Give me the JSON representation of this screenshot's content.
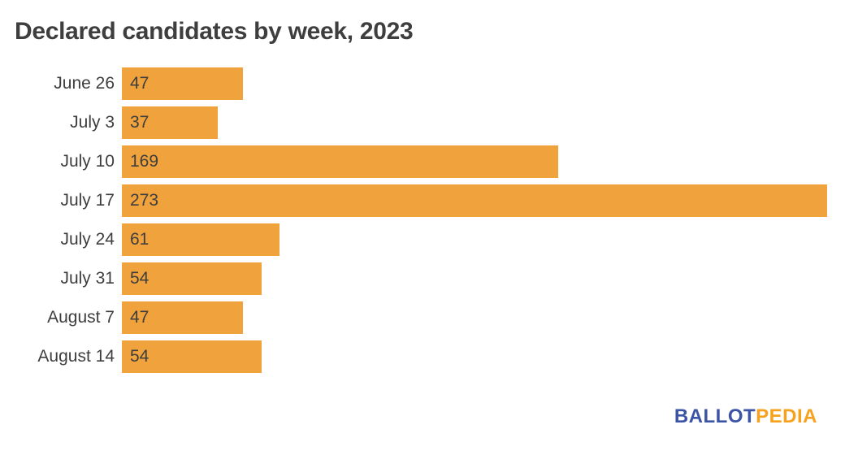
{
  "title": "Declared candidates by week, 2023",
  "chart_data": {
    "type": "bar",
    "orientation": "horizontal",
    "title": "Declared candidates by week, 2023",
    "categories": [
      "June 26",
      "July 3",
      "July 10",
      "July 17",
      "July 24",
      "July 31",
      "August 7",
      "August 14"
    ],
    "values": [
      47,
      37,
      169,
      273,
      61,
      54,
      47,
      54
    ],
    "xlabel": "",
    "ylabel": "",
    "xlim": [
      0,
      273
    ],
    "grid": false,
    "legend": "none",
    "bar_color": "#F0A23C",
    "value_labels_shown": true,
    "value_label_position": "inside-start"
  },
  "colors": {
    "bar": "#F0A23C",
    "text": "#3E3E3E",
    "logo_blue": "#3B54A5",
    "logo_orange": "#F6A21E",
    "background": "#FFFFFF"
  },
  "logo": {
    "ballot": "BALLOT",
    "pedia": "PEDIA"
  }
}
